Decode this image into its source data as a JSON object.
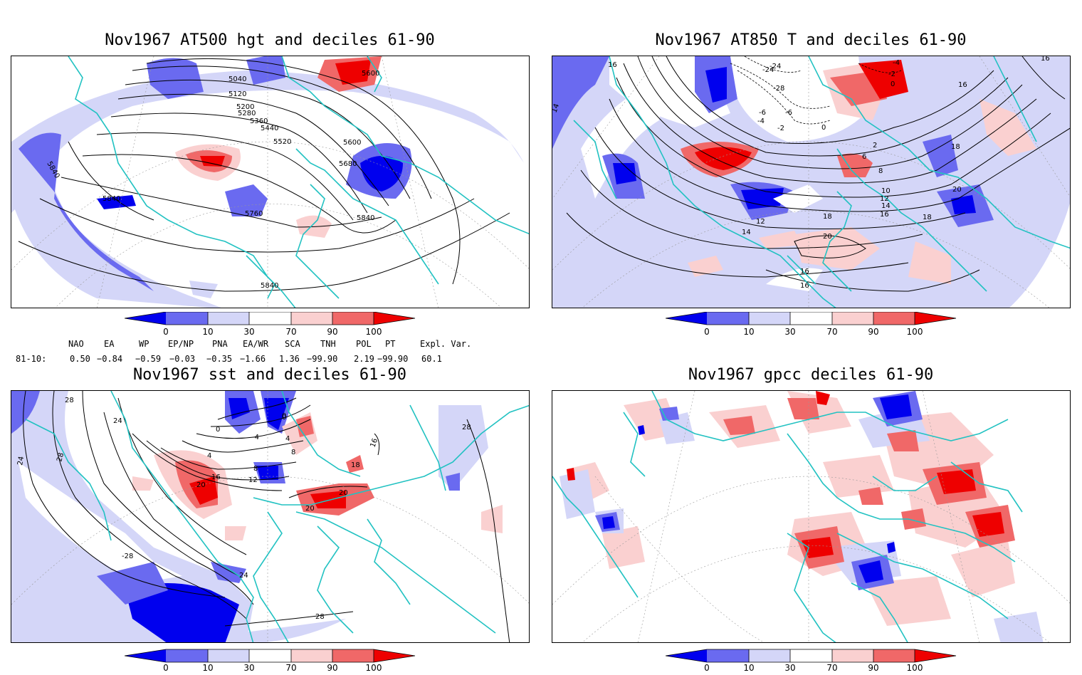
{
  "colors": {
    "dec_0_10": "#0000ee",
    "dec_10_30_dark": "#6a6af0",
    "dec_10_30": "#d4d6f8",
    "dec_70_90": "#fad0d0",
    "dec_90": "#f06868",
    "dec_100": "#ee0000",
    "coast": "#22c2c2",
    "contour": "#000000"
  },
  "panels": [
    {
      "title": "Nov1967 AT500 hgt and deciles 61-90",
      "contour_labels": [
        "5040",
        "5120",
        "5200",
        "5280",
        "5360",
        "5440",
        "5520",
        "5600",
        "5680",
        "5760",
        "5840",
        "5840",
        "5840",
        "5840",
        "5600"
      ]
    },
    {
      "title": "Nov1967 AT850 T and deciles 61-90",
      "contour_labels": [
        "16",
        "14",
        "-24",
        "-24",
        "-28",
        "-6",
        "-6",
        "-4",
        "-2",
        "0",
        "2",
        "6",
        "8",
        "10",
        "12",
        "12",
        "14",
        "14",
        "16",
        "16",
        "18",
        "18",
        "20",
        "20",
        "18",
        "16",
        "-4",
        "-2",
        "0",
        "16",
        "16"
      ]
    },
    {
      "title": "Nov1967 sst and deciles 61-90",
      "contour_labels": [
        "28",
        "24",
        "24",
        "28",
        "0",
        "0",
        "4",
        "4",
        "8",
        "8",
        "12",
        "16",
        "20",
        "20",
        "20",
        "18",
        "16",
        "-4",
        "-28",
        "24",
        "28",
        "28",
        "0"
      ]
    },
    {
      "title": "Nov1967 gpcc deciles 61-90",
      "contour_labels": []
    }
  ],
  "colorbar": {
    "ticks": [
      "0",
      "10",
      "30",
      "70",
      "90",
      "100"
    ]
  },
  "indices": {
    "headers": [
      "NAO",
      "EA",
      "WP",
      "EP/NP",
      "PNA",
      "EA/WR",
      "SCA",
      "TNH",
      "POL",
      "PT",
      "Expl. Var."
    ],
    "row_label": "81-10:",
    "values": [
      "0.50",
      "−0.84",
      "−0.59",
      "−0.03",
      "−0.35",
      "−1.66",
      "1.36",
      "−99.90",
      "2.19",
      "−99.90",
      "60.1"
    ]
  }
}
